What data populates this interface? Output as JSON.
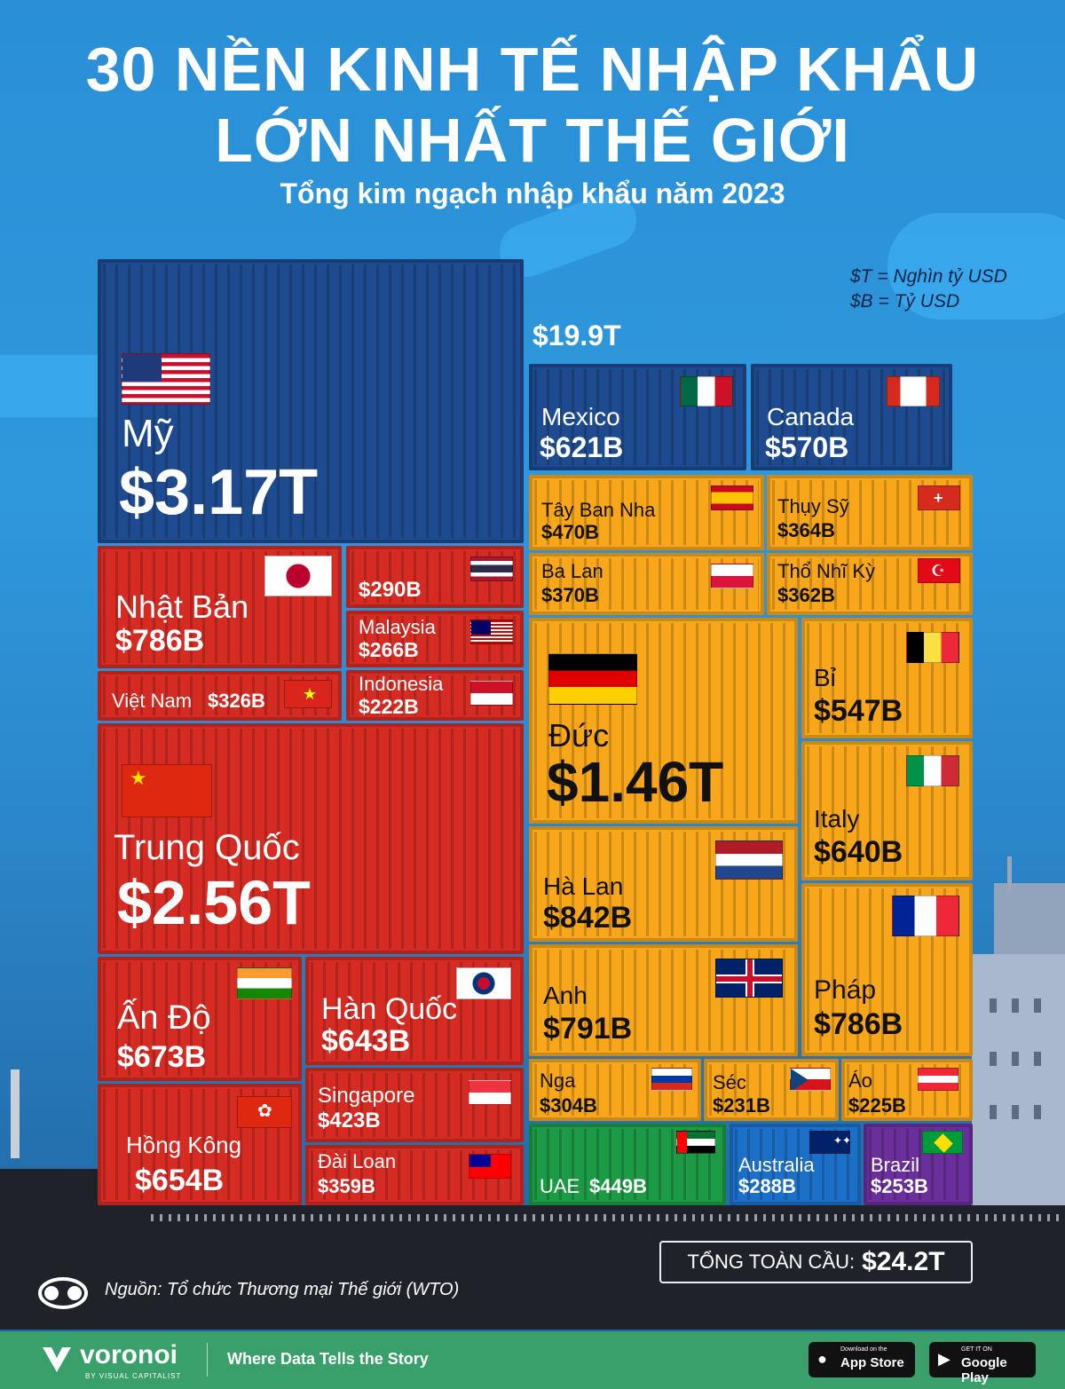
{
  "title_line1": "30 NỀN KINH TẾ NHẬP KHẨU",
  "title_line2": "LỚN NHẤT THẾ GIỚI",
  "subtitle": "Tổng kim ngạch nhập khẩu năm 2023",
  "legend_t": "$T = Nghìn tỷ USD",
  "legend_b": "$B = Tỷ USD",
  "sum_label": "$19.9T",
  "total_label": "TỔNG TOÀN CẦU:",
  "total_value": "$24.2T",
  "source": "Nguồn: Tổ chức Thương mại Thế giới (WTO)",
  "brand": "voronoi",
  "brand_sub": "BY VISUAL CAPITALIST",
  "tagline": "Where Data Tells the Story",
  "app_store_small": "Download on the",
  "app_store": "App Store",
  "google_small": "GET IT ON",
  "google": "Google Play",
  "colors": {
    "navy": "#1e4a8f",
    "red": "#d62b23",
    "orange": "#f8a61a",
    "green": "#1d9a45",
    "blue": "#1b6fc7",
    "purple": "#6a2f9a"
  },
  "chart_data": {
    "type": "treemap",
    "unit_note": [
      "$T = Nghìn tỷ USD",
      "$B = Tỷ USD"
    ],
    "countries": [
      {
        "name": "Mỹ",
        "value": "$3.17T",
        "value_usd_billion": 3170
      },
      {
        "name": "Trung Quốc",
        "value": "$2.56T",
        "value_usd_billion": 2560
      },
      {
        "name": "Đức",
        "value": "$1.46T",
        "value_usd_billion": 1460
      },
      {
        "name": "Hà Lan",
        "value": "$842B",
        "value_usd_billion": 842
      },
      {
        "name": "Anh",
        "value": "$791B",
        "value_usd_billion": 791
      },
      {
        "name": "Nhật Bản",
        "value": "$786B",
        "value_usd_billion": 786
      },
      {
        "name": "Pháp",
        "value": "$786B",
        "value_usd_billion": 786
      },
      {
        "name": "Ấn Độ",
        "value": "$673B",
        "value_usd_billion": 673
      },
      {
        "name": "Hồng Kông",
        "value": "$654B",
        "value_usd_billion": 654
      },
      {
        "name": "Hàn Quốc",
        "value": "$643B",
        "value_usd_billion": 643
      },
      {
        "name": "Italy",
        "value": "$640B",
        "value_usd_billion": 640
      },
      {
        "name": "Mexico",
        "value": "$621B",
        "value_usd_billion": 621
      },
      {
        "name": "Canada",
        "value": "$570B",
        "value_usd_billion": 570
      },
      {
        "name": "Bỉ",
        "value": "$547B",
        "value_usd_billion": 547
      },
      {
        "name": "Tây Ban Nha",
        "value": "$470B",
        "value_usd_billion": 470
      },
      {
        "name": "UAE",
        "value": "$449B",
        "value_usd_billion": 449
      },
      {
        "name": "Singapore",
        "value": "$423B",
        "value_usd_billion": 423
      },
      {
        "name": "Ba Lan",
        "value": "$370B",
        "value_usd_billion": 370
      },
      {
        "name": "Thụy Sỹ",
        "value": "$364B",
        "value_usd_billion": 364
      },
      {
        "name": "Thổ Nhĩ Kỳ",
        "value": "$362B",
        "value_usd_billion": 362
      },
      {
        "name": "Đài Loan",
        "value": "$359B",
        "value_usd_billion": 359
      },
      {
        "name": "Việt Nam",
        "value": "$326B",
        "value_usd_billion": 326
      },
      {
        "name": "Nga",
        "value": "$304B",
        "value_usd_billion": 304
      },
      {
        "name": "",
        "value": "$290B",
        "value_usd_billion": 290
      },
      {
        "name": "Australia",
        "value": "$288B",
        "value_usd_billion": 288
      },
      {
        "name": "Malaysia",
        "value": "$266B",
        "value_usd_billion": 266
      },
      {
        "name": "Brazil",
        "value": "$253B",
        "value_usd_billion": 253
      },
      {
        "name": "Séc",
        "value": "$231B",
        "value_usd_billion": 231
      },
      {
        "name": "Áo",
        "value": "$225B",
        "value_usd_billion": 225
      },
      {
        "name": "Indonesia",
        "value": "$222B",
        "value_usd_billion": 222
      }
    ]
  }
}
